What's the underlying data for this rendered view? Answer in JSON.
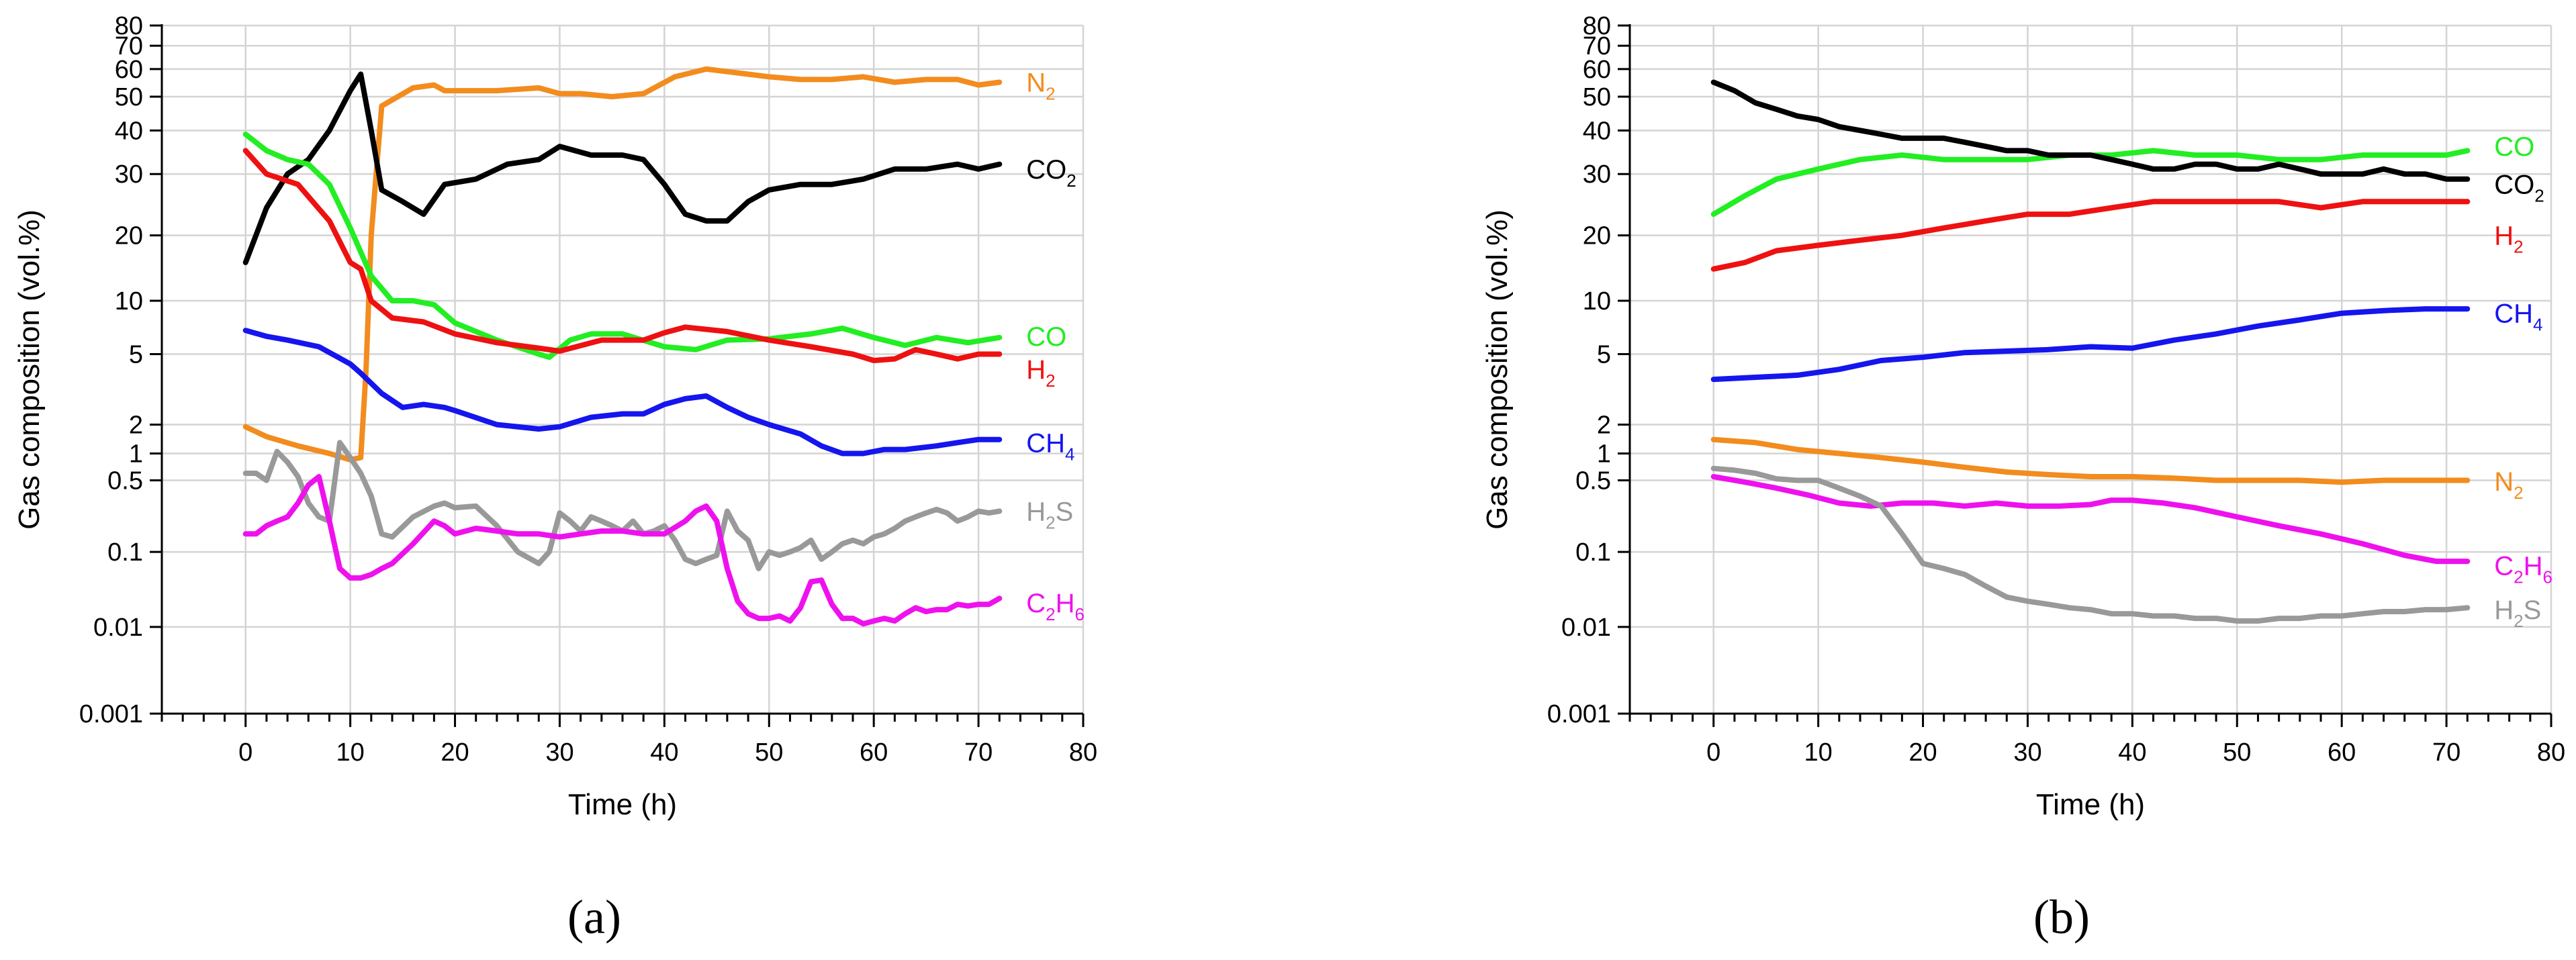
{
  "chart_data": [
    {
      "type": "line",
      "panel_label": "(a)",
      "xlabel": "Time (h)",
      "ylabel": "Gas composition (vol.%)",
      "yscale": "symlog",
      "xlim": [
        -8,
        80
      ],
      "ylim": [
        0.001,
        80
      ],
      "xticks": [
        "0",
        "10",
        "20",
        "30",
        "40",
        "50",
        "60",
        "70",
        "80"
      ],
      "yticks": [
        "0.001",
        "0.01",
        "0.1",
        "0.5",
        "1",
        "2",
        "5",
        "10",
        "20",
        "30",
        "40",
        "50",
        "60",
        "70",
        "80"
      ],
      "grid": true,
      "series": [
        {
          "name": "N",
          "sub": "2",
          "color": "#F28C1E",
          "x": [
            0,
            2,
            5,
            8,
            10,
            11,
            11.5,
            12,
            13,
            16,
            18,
            19,
            20,
            24,
            28,
            30,
            32,
            35,
            38,
            41,
            44,
            46,
            48,
            50,
            53,
            56,
            59,
            62,
            65,
            68,
            70,
            72
          ],
          "y": [
            1.9,
            1.5,
            1.2,
            1.0,
            0.85,
            0.9,
            4,
            20,
            47,
            53,
            54,
            52,
            52,
            52,
            53,
            51,
            51,
            50,
            51,
            57,
            60,
            59,
            58,
            57,
            56,
            56,
            57,
            55,
            56,
            56,
            54,
            55
          ]
        },
        {
          "name": "CO",
          "sub": "2",
          "color": "#000000",
          "x": [
            0,
            2,
            4,
            6,
            8,
            10,
            11,
            12,
            13,
            15,
            17,
            19,
            22,
            25,
            28,
            30,
            33,
            36,
            38,
            40,
            42,
            44,
            46,
            48,
            50,
            53,
            56,
            59,
            62,
            65,
            68,
            70,
            72
          ],
          "y": [
            15,
            24,
            30,
            33,
            40,
            52,
            58,
            40,
            27,
            25,
            23,
            28,
            29,
            32,
            33,
            36,
            34,
            34,
            33,
            28,
            23,
            22,
            22,
            25,
            27,
            28,
            28,
            29,
            31,
            31,
            32,
            31,
            32
          ]
        },
        {
          "name": "CO",
          "sub": "",
          "color": "#22EE22",
          "x": [
            0,
            2,
            4,
            6,
            8,
            10,
            12,
            14,
            16,
            18,
            20,
            24,
            28,
            29,
            31,
            33,
            36,
            40,
            43,
            46,
            50,
            54,
            57,
            60,
            63,
            66,
            69,
            72
          ],
          "y": [
            39,
            35,
            33,
            32,
            28,
            21,
            13,
            10,
            10,
            9.5,
            7.5,
            6,
            5,
            4.8,
            6,
            6.5,
            6.5,
            5.5,
            5.3,
            6,
            6.1,
            6.5,
            7,
            6.2,
            5.6,
            6.2,
            5.8,
            6.2
          ]
        },
        {
          "name": "H",
          "sub": "2",
          "color": "#EE1111",
          "x": [
            0,
            2,
            5,
            8,
            10,
            11,
            12,
            14,
            17,
            20,
            24,
            28,
            30,
            34,
            38,
            40,
            42,
            46,
            50,
            54,
            58,
            60,
            62,
            64,
            66,
            68,
            70,
            72
          ],
          "y": [
            35,
            30,
            28,
            22,
            15,
            14,
            10,
            8,
            7.6,
            6.5,
            5.8,
            5.4,
            5.2,
            6,
            6,
            6.6,
            7.1,
            6.7,
            6,
            5.5,
            5,
            4.6,
            4.7,
            5.3,
            5,
            4.7,
            5,
            5
          ]
        },
        {
          "name": "CH",
          "sub": "4",
          "color": "#1515EE",
          "x": [
            0,
            2,
            4,
            7,
            10,
            11,
            13,
            15,
            17,
            19,
            20,
            24,
            28,
            30,
            33,
            36,
            38,
            40,
            42,
            44,
            46,
            48,
            50,
            53,
            55,
            57,
            59,
            61,
            63,
            66,
            68,
            70,
            72
          ],
          "y": [
            6.8,
            6.3,
            6,
            5.5,
            4.4,
            3.9,
            3,
            2.5,
            2.6,
            2.5,
            2.4,
            2,
            1.8,
            1.9,
            2.2,
            2.3,
            2.3,
            2.6,
            2.8,
            2.9,
            2.5,
            2.2,
            2,
            1.6,
            1.2,
            1,
            1,
            1.1,
            1.1,
            1.2,
            1.3,
            1.4,
            1.4
          ]
        },
        {
          "name": "H",
          "sub": "2",
          "suffix": "S",
          "color": "#999999",
          "x": [
            0,
            1,
            2,
            3,
            4,
            5,
            6,
            7,
            8,
            9,
            10,
            11,
            12,
            13,
            14,
            16,
            18,
            19,
            20,
            22,
            24,
            26,
            28,
            29,
            30,
            31,
            32,
            33,
            34,
            35,
            36,
            37,
            38,
            39,
            40,
            41,
            42,
            43,
            44,
            45,
            46,
            47,
            48,
            49,
            50,
            51,
            52,
            53,
            54,
            55,
            56,
            57,
            58,
            59,
            60,
            61,
            62,
            63,
            64,
            65,
            66,
            67,
            68,
            69,
            70,
            71,
            72
          ],
          "y": [
            0.6,
            0.6,
            0.5,
            1.05,
            0.8,
            0.55,
            0.3,
            0.22,
            0.2,
            1.3,
            0.9,
            0.6,
            0.35,
            0.15,
            0.14,
            0.22,
            0.28,
            0.3,
            0.27,
            0.28,
            0.18,
            0.1,
            0.07,
            0.1,
            0.24,
            0.2,
            0.16,
            0.22,
            0.2,
            0.18,
            0.16,
            0.2,
            0.15,
            0.16,
            0.18,
            0.13,
            0.08,
            0.07,
            0.08,
            0.09,
            0.25,
            0.16,
            0.13,
            0.06,
            0.1,
            0.09,
            0.1,
            0.11,
            0.13,
            0.08,
            0.1,
            0.12,
            0.13,
            0.12,
            0.14,
            0.15,
            0.17,
            0.2,
            0.22,
            0.24,
            0.26,
            0.24,
            0.2,
            0.22,
            0.25,
            0.24,
            0.25
          ]
        },
        {
          "name": "C",
          "sub": "2",
          "mid": "H",
          "sub2": "6",
          "color": "#EE11EE",
          "x": [
            0,
            1,
            2,
            3,
            4,
            5,
            6,
            7,
            8,
            9,
            10,
            11,
            12,
            13,
            14,
            16,
            18,
            19,
            20,
            22,
            24,
            26,
            28,
            30,
            32,
            34,
            36,
            38,
            40,
            42,
            43,
            44,
            45,
            46,
            47,
            48,
            49,
            50,
            51,
            52,
            53,
            54,
            55,
            56,
            57,
            58,
            59,
            60,
            61,
            62,
            63,
            64,
            65,
            66,
            67,
            68,
            69,
            70,
            71,
            72
          ],
          "y": [
            0.15,
            0.15,
            0.18,
            0.2,
            0.22,
            0.3,
            0.45,
            0.55,
            0.2,
            0.06,
            0.045,
            0.045,
            0.05,
            0.06,
            0.07,
            0.12,
            0.2,
            0.18,
            0.15,
            0.17,
            0.16,
            0.15,
            0.15,
            0.14,
            0.15,
            0.16,
            0.16,
            0.15,
            0.15,
            0.2,
            0.25,
            0.28,
            0.2,
            0.06,
            0.022,
            0.015,
            0.013,
            0.013,
            0.014,
            0.012,
            0.018,
            0.04,
            0.042,
            0.02,
            0.013,
            0.013,
            0.011,
            0.012,
            0.013,
            0.012,
            0.015,
            0.018,
            0.016,
            0.017,
            0.017,
            0.02,
            0.019,
            0.02,
            0.02,
            0.024
          ]
        }
      ]
    },
    {
      "type": "line",
      "panel_label": "(b)",
      "xlabel": "Time (h)",
      "ylabel": "Gas composition (vol.%)",
      "yscale": "symlog",
      "xlim": [
        -8,
        80
      ],
      "ylim": [
        0.001,
        80
      ],
      "xticks": [
        "0",
        "10",
        "20",
        "30",
        "40",
        "50",
        "60",
        "70",
        "80"
      ],
      "yticks": [
        "0.001",
        "0.01",
        "0.1",
        "0.5",
        "1",
        "2",
        "5",
        "10",
        "20",
        "30",
        "40",
        "50",
        "60",
        "70",
        "80"
      ],
      "grid": true,
      "series": [
        {
          "name": "CO",
          "sub": "",
          "color": "#22EE22",
          "x": [
            0,
            3,
            6,
            10,
            14,
            18,
            22,
            26,
            30,
            34,
            38,
            42,
            46,
            50,
            54,
            58,
            62,
            66,
            70,
            72
          ],
          "y": [
            23,
            26,
            29,
            31,
            33,
            34,
            33,
            33,
            33,
            34,
            34,
            35,
            34,
            34,
            33,
            33,
            34,
            34,
            34,
            35
          ]
        },
        {
          "name": "CO",
          "sub": "2",
          "color": "#000000",
          "x": [
            0,
            2,
            4,
            6,
            8,
            10,
            12,
            14,
            16,
            18,
            20,
            22,
            24,
            26,
            28,
            30,
            32,
            34,
            36,
            38,
            40,
            42,
            44,
            46,
            48,
            50,
            52,
            54,
            56,
            58,
            60,
            62,
            64,
            66,
            68,
            70,
            72
          ],
          "y": [
            55,
            52,
            48,
            46,
            44,
            43,
            41,
            40,
            39,
            38,
            38,
            38,
            37,
            36,
            35,
            35,
            34,
            34,
            34,
            33,
            32,
            31,
            31,
            32,
            32,
            31,
            31,
            32,
            31,
            30,
            30,
            30,
            31,
            30,
            30,
            29,
            29
          ]
        },
        {
          "name": "H",
          "sub": "2",
          "color": "#EE1111",
          "x": [
            0,
            3,
            6,
            10,
            14,
            18,
            22,
            26,
            30,
            34,
            38,
            42,
            46,
            50,
            54,
            58,
            62,
            66,
            70,
            72
          ],
          "y": [
            14,
            15,
            17,
            18,
            19,
            20,
            21,
            22,
            23,
            23,
            24,
            25,
            25,
            25,
            25,
            24,
            25,
            25,
            25,
            25
          ]
        },
        {
          "name": "CH",
          "sub": "4",
          "color": "#1515EE",
          "x": [
            0,
            4,
            8,
            12,
            16,
            20,
            24,
            28,
            32,
            36,
            40,
            44,
            48,
            52,
            56,
            60,
            64,
            68,
            72
          ],
          "y": [
            3.6,
            3.7,
            3.8,
            4.1,
            4.6,
            4.8,
            5.1,
            5.2,
            5.3,
            5.5,
            5.4,
            6,
            6.5,
            7.2,
            7.8,
            8.5,
            8.8,
            9,
            9
          ]
        },
        {
          "name": "N",
          "sub": "2",
          "color": "#F28C1E",
          "x": [
            0,
            4,
            8,
            12,
            16,
            20,
            24,
            28,
            32,
            36,
            40,
            44,
            48,
            52,
            56,
            60,
            64,
            68,
            72
          ],
          "y": [
            1.4,
            1.3,
            1.1,
            1,
            0.9,
            0.8,
            0.7,
            0.62,
            0.58,
            0.55,
            0.55,
            0.53,
            0.5,
            0.5,
            0.5,
            0.48,
            0.5,
            0.5,
            0.5
          ]
        },
        {
          "name": "C",
          "sub": "2",
          "mid": "H",
          "sub2": "6",
          "color": "#EE11EE",
          "x": [
            0,
            3,
            6,
            9,
            12,
            15,
            18,
            21,
            24,
            27,
            30,
            33,
            36,
            38,
            40,
            43,
            46,
            50,
            54,
            58,
            62,
            66,
            69,
            72
          ],
          "y": [
            0.55,
            0.48,
            0.42,
            0.36,
            0.3,
            0.28,
            0.3,
            0.3,
            0.28,
            0.3,
            0.28,
            0.28,
            0.29,
            0.32,
            0.32,
            0.3,
            0.27,
            0.22,
            0.18,
            0.15,
            0.12,
            0.09,
            0.075,
            0.075
          ]
        },
        {
          "name": "H",
          "sub": "2",
          "suffix": "S",
          "color": "#999999",
          "x": [
            0,
            2,
            4,
            6,
            8,
            10,
            12,
            14,
            16,
            18,
            20,
            22,
            24,
            26,
            28,
            30,
            32,
            34,
            36,
            38,
            40,
            42,
            44,
            46,
            48,
            50,
            52,
            54,
            56,
            58,
            60,
            62,
            64,
            66,
            68,
            70,
            72
          ],
          "y": [
            0.68,
            0.65,
            0.6,
            0.52,
            0.5,
            0.5,
            0.42,
            0.35,
            0.28,
            0.15,
            0.07,
            0.06,
            0.05,
            0.035,
            0.025,
            0.022,
            0.02,
            0.018,
            0.017,
            0.015,
            0.015,
            0.014,
            0.014,
            0.013,
            0.013,
            0.012,
            0.012,
            0.013,
            0.013,
            0.014,
            0.014,
            0.015,
            0.016,
            0.016,
            0.017,
            0.017,
            0.018
          ]
        }
      ]
    }
  ]
}
